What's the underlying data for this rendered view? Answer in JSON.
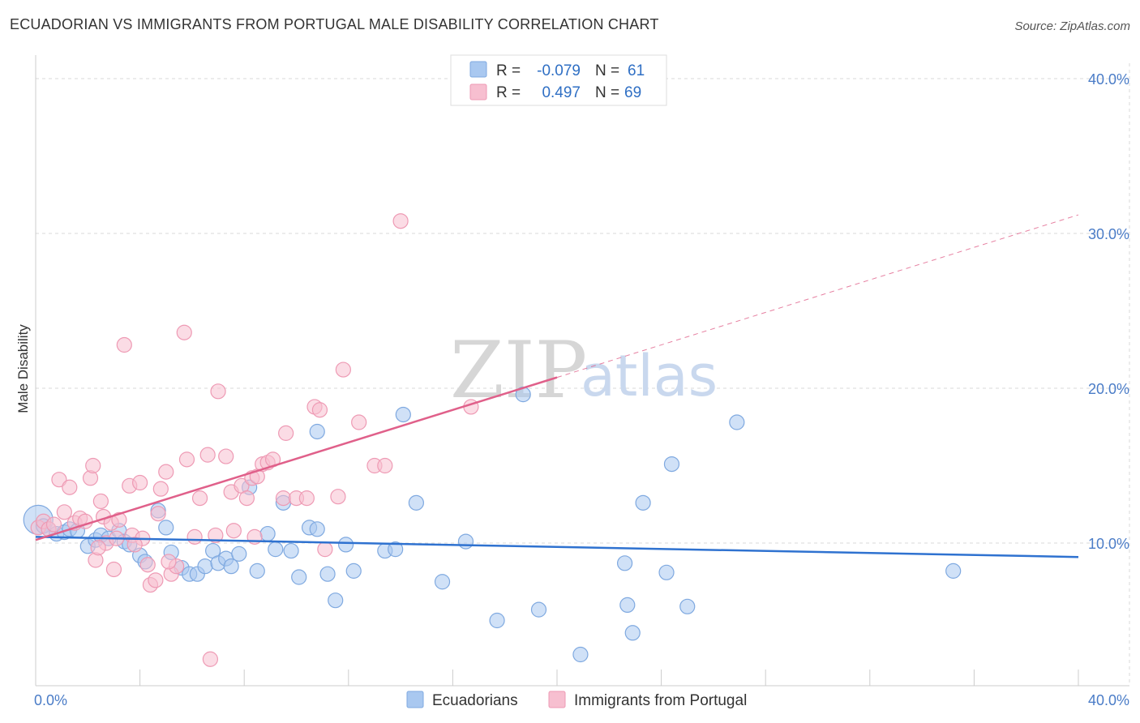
{
  "title": "ECUADORIAN VS IMMIGRANTS FROM PORTUGAL MALE DISABILITY CORRELATION CHART",
  "source": "Source: ZipAtlas.com",
  "watermark": {
    "zip": "ZIP",
    "atlas": "atlas"
  },
  "legend": {
    "rows": [
      {
        "r_label": "R =",
        "r_value": "-0.079",
        "n_label": "N =",
        "n_value": "61",
        "color": "#a9c8f0",
        "stroke": "#7fa9e0"
      },
      {
        "r_label": "R =",
        "r_value": "0.497",
        "n_label": "N =",
        "n_value": "69",
        "color": "#f7bfd0",
        "stroke": "#ee9ab4"
      }
    ]
  },
  "bottom_legend": [
    {
      "label": "Ecuadorians",
      "color": "#a9c8f0",
      "stroke": "#7fa9e0"
    },
    {
      "label": "Immigrants from Portugal",
      "color": "#f7bfd0",
      "stroke": "#ee9ab4"
    }
  ],
  "chart_data": {
    "type": "scatter",
    "xlabel": "",
    "ylabel": "Male Disability",
    "xlim": [
      0,
      40
    ],
    "ylim": [
      0,
      40
    ],
    "x_tick_labels": [
      "0.0%",
      "40.0%"
    ],
    "y_ticks": [
      10,
      20,
      30,
      40
    ],
    "y_tick_labels": [
      "10.0%",
      "20.0%",
      "30.0%",
      "40.0%"
    ],
    "grid": true,
    "series": [
      {
        "name": "Ecuadorians",
        "color": "#a9c8f0",
        "stroke": "#7fa9e0",
        "trend_color": "#2f72d0",
        "trend": {
          "x0": 0,
          "y0": 10.4,
          "x1": 40,
          "y1": 9.1
        },
        "points": [
          [
            0.1,
            11.5
          ],
          [
            0.3,
            11.1
          ],
          [
            0.5,
            10.9
          ],
          [
            0.8,
            10.6
          ],
          [
            1.1,
            10.7
          ],
          [
            1.3,
            10.9
          ],
          [
            1.6,
            10.8
          ],
          [
            2.0,
            9.8
          ],
          [
            2.3,
            10.2
          ],
          [
            2.5,
            10.5
          ],
          [
            2.8,
            10.3
          ],
          [
            3.2,
            10.8
          ],
          [
            3.4,
            10.1
          ],
          [
            3.6,
            9.9
          ],
          [
            4.0,
            9.2
          ],
          [
            4.2,
            8.8
          ],
          [
            4.7,
            12.1
          ],
          [
            5.0,
            11.0
          ],
          [
            5.2,
            9.4
          ],
          [
            5.6,
            8.4
          ],
          [
            5.9,
            8.0
          ],
          [
            6.2,
            8.0
          ],
          [
            6.5,
            8.5
          ],
          [
            6.8,
            9.5
          ],
          [
            7.0,
            8.7
          ],
          [
            7.3,
            9.0
          ],
          [
            7.5,
            8.5
          ],
          [
            7.8,
            9.3
          ],
          [
            8.2,
            13.6
          ],
          [
            8.5,
            8.2
          ],
          [
            8.9,
            10.6
          ],
          [
            9.2,
            9.6
          ],
          [
            9.5,
            12.6
          ],
          [
            9.8,
            9.5
          ],
          [
            10.1,
            7.8
          ],
          [
            10.5,
            11.0
          ],
          [
            10.8,
            10.9
          ],
          [
            11.2,
            8.0
          ],
          [
            11.5,
            6.3
          ],
          [
            11.9,
            9.9
          ],
          [
            12.2,
            8.2
          ],
          [
            13.4,
            9.5
          ],
          [
            13.8,
            9.6
          ],
          [
            14.1,
            18.3
          ],
          [
            14.6,
            12.6
          ],
          [
            15.6,
            7.5
          ],
          [
            16.5,
            10.1
          ],
          [
            17.7,
            5.0
          ],
          [
            18.7,
            19.6
          ],
          [
            19.3,
            5.7
          ],
          [
            20.9,
            2.8
          ],
          [
            22.6,
            8.7
          ],
          [
            22.7,
            6.0
          ],
          [
            22.9,
            4.2
          ],
          [
            23.3,
            12.6
          ],
          [
            24.2,
            8.1
          ],
          [
            24.4,
            15.1
          ],
          [
            25.0,
            5.9
          ],
          [
            26.9,
            17.8
          ],
          [
            35.2,
            8.2
          ],
          [
            10.8,
            17.2
          ]
        ]
      },
      {
        "name": "Immigrants from Portugal",
        "color": "#f7bfd0",
        "stroke": "#ee9ab4",
        "trend_color": "#e0608a",
        "trend": {
          "x0": 0,
          "y0": 10.2,
          "x1": 20,
          "y1": 20.7
        },
        "trend_ext": {
          "x0": 20,
          "y0": 20.7,
          "x1": 40,
          "y1": 31.2
        },
        "points": [
          [
            0.1,
            11.0
          ],
          [
            0.3,
            11.4
          ],
          [
            0.5,
            10.9
          ],
          [
            0.7,
            11.2
          ],
          [
            0.9,
            14.1
          ],
          [
            1.1,
            12.0
          ],
          [
            1.3,
            13.6
          ],
          [
            1.5,
            11.3
          ],
          [
            1.7,
            11.6
          ],
          [
            1.9,
            11.4
          ],
          [
            2.1,
            14.2
          ],
          [
            2.2,
            15.0
          ],
          [
            2.3,
            8.9
          ],
          [
            2.5,
            12.7
          ],
          [
            2.6,
            11.7
          ],
          [
            2.7,
            10.0
          ],
          [
            2.9,
            11.3
          ],
          [
            3.1,
            10.3
          ],
          [
            3.0,
            8.3
          ],
          [
            3.2,
            11.5
          ],
          [
            3.4,
            22.8
          ],
          [
            3.6,
            13.7
          ],
          [
            3.7,
            10.5
          ],
          [
            4.0,
            13.9
          ],
          [
            4.1,
            10.3
          ],
          [
            4.3,
            8.6
          ],
          [
            4.4,
            7.3
          ],
          [
            4.6,
            7.6
          ],
          [
            4.7,
            11.9
          ],
          [
            4.8,
            13.5
          ],
          [
            5.0,
            14.6
          ],
          [
            5.2,
            8.0
          ],
          [
            5.4,
            8.5
          ],
          [
            5.7,
            23.6
          ],
          [
            5.8,
            15.4
          ],
          [
            6.1,
            10.4
          ],
          [
            6.3,
            12.9
          ],
          [
            6.6,
            15.7
          ],
          [
            6.7,
            2.5
          ],
          [
            6.9,
            10.5
          ],
          [
            7.0,
            19.8
          ],
          [
            7.3,
            15.6
          ],
          [
            7.5,
            13.3
          ],
          [
            7.9,
            13.7
          ],
          [
            8.1,
            12.9
          ],
          [
            8.3,
            14.2
          ],
          [
            8.5,
            14.3
          ],
          [
            8.7,
            15.1
          ],
          [
            8.9,
            15.2
          ],
          [
            9.1,
            15.4
          ],
          [
            9.5,
            12.9
          ],
          [
            9.6,
            17.1
          ],
          [
            10.0,
            12.9
          ],
          [
            10.4,
            12.9
          ],
          [
            10.7,
            18.8
          ],
          [
            10.9,
            18.6
          ],
          [
            11.1,
            9.6
          ],
          [
            11.6,
            13.0
          ],
          [
            11.8,
            21.2
          ],
          [
            12.4,
            17.8
          ],
          [
            13.0,
            15.0
          ],
          [
            13.4,
            15.0
          ],
          [
            14.0,
            30.8
          ],
          [
            16.7,
            18.8
          ],
          [
            2.4,
            9.7
          ],
          [
            3.8,
            9.9
          ],
          [
            5.1,
            8.8
          ],
          [
            7.6,
            10.8
          ],
          [
            8.4,
            10.4
          ]
        ]
      }
    ]
  }
}
